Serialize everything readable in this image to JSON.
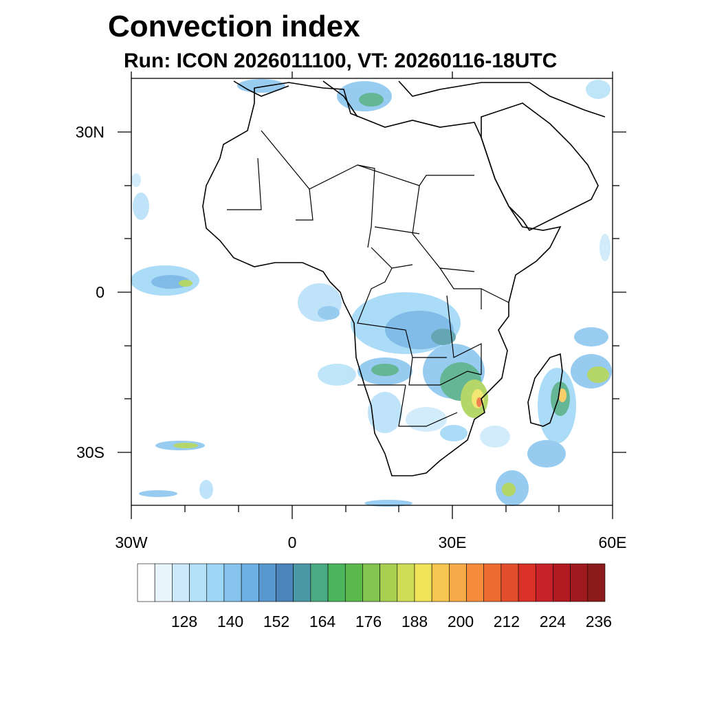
{
  "title": "Convection index",
  "subtitle": "Run: ICON 2026011100,  VT: 20260116-18UTC",
  "axes": {
    "lon_labels": [
      "30W",
      "0",
      "30E",
      "60E"
    ],
    "lat_labels": [
      "30N",
      "0",
      "30S"
    ]
  },
  "colorbar": {
    "colors": [
      "#ffffff",
      "#e8f5fd",
      "#cbe9fb",
      "#b4e0f8",
      "#9dd6f6",
      "#86c4ee",
      "#6cb0e4",
      "#5898cf",
      "#4a84b8",
      "#4a98a6",
      "#4aaa82",
      "#4cb65c",
      "#5aba4c",
      "#84c44e",
      "#a9cf50",
      "#cfdc56",
      "#f0e35a",
      "#f7c651",
      "#f7aa48",
      "#f58c3c",
      "#ee6c32",
      "#e34e2c",
      "#d93128",
      "#c7212a",
      "#b21a22",
      "#9e1a1e",
      "#8b1a1a"
    ],
    "labels": [
      "128",
      "140",
      "152",
      "164",
      "176",
      "188",
      "200",
      "212",
      "224",
      "236"
    ]
  }
}
